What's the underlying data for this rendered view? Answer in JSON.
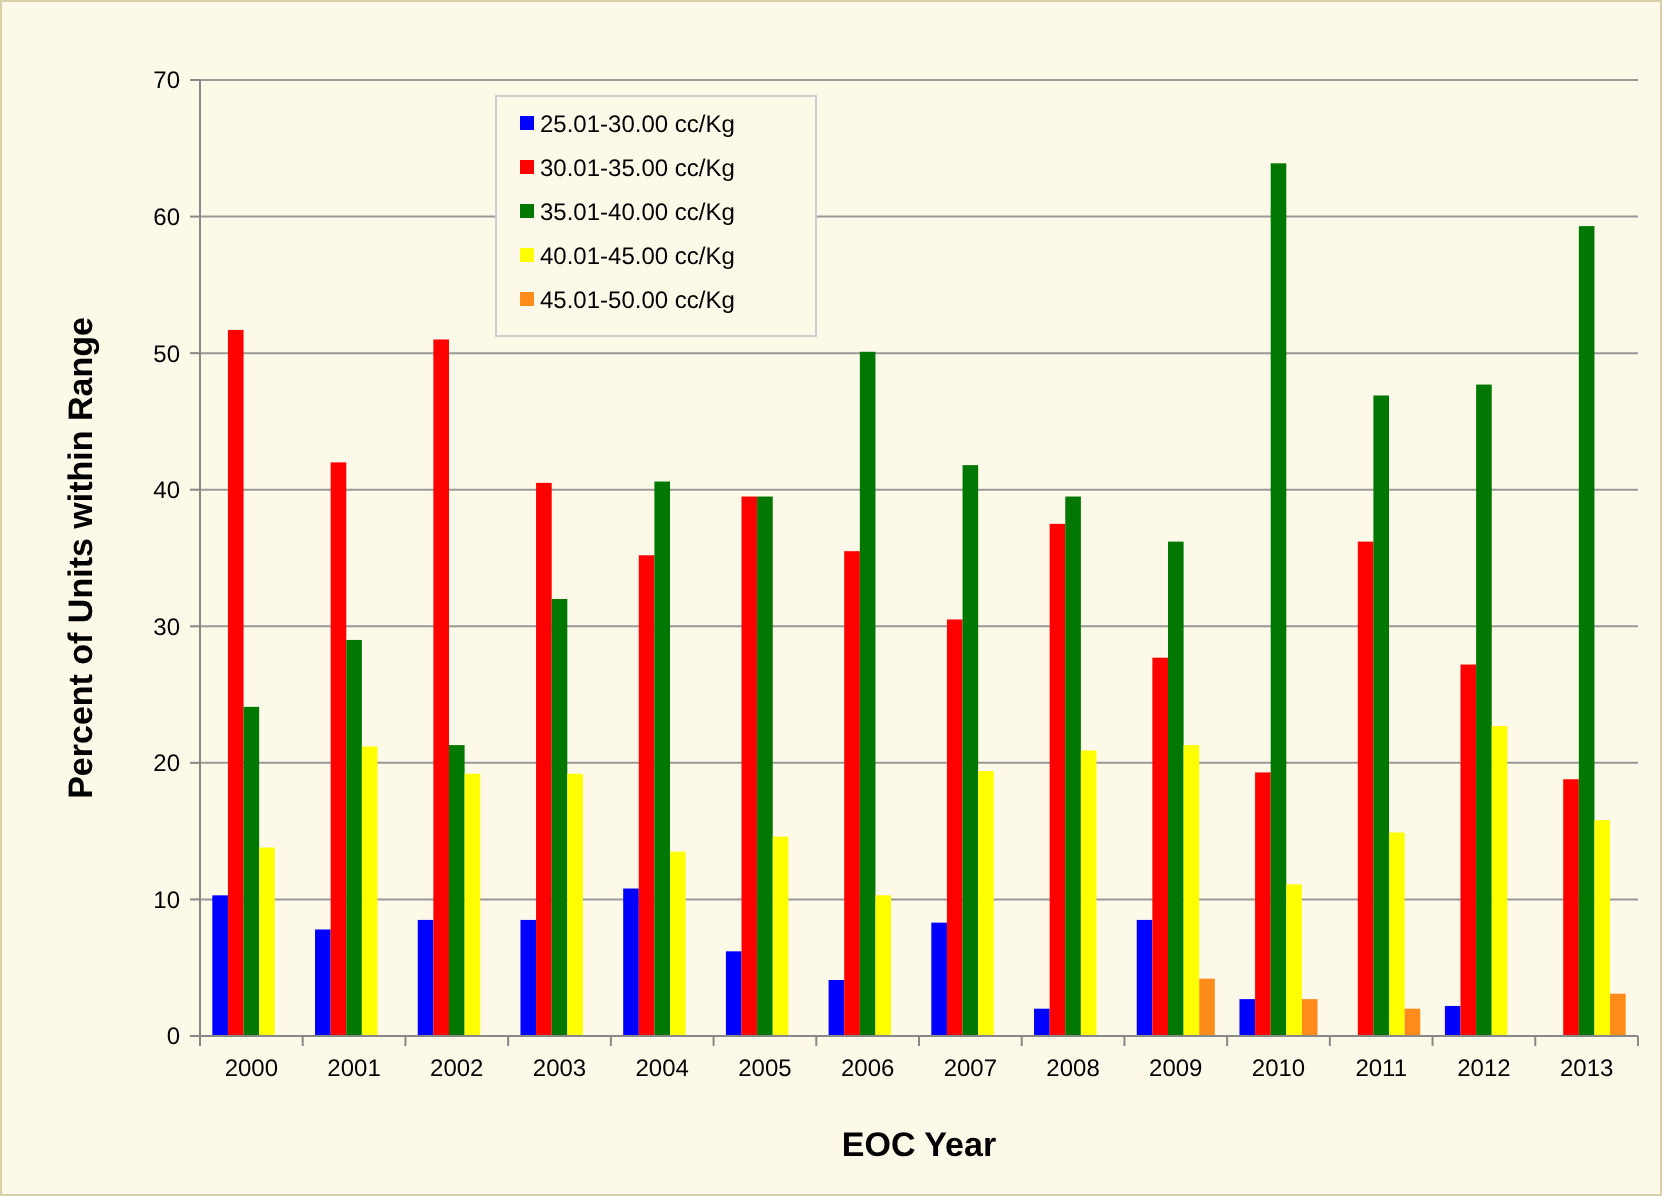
{
  "chart_data": {
    "type": "bar",
    "xlabel": "EOC Year",
    "ylabel": "Percent of Units within Range",
    "categories": [
      "2000",
      "2001",
      "2002",
      "2003",
      "2004",
      "2005",
      "2006",
      "2007",
      "2008",
      "2009",
      "2010",
      "2011",
      "2012",
      "2013"
    ],
    "series": [
      {
        "name": "25.01-30.00  cc/Kg",
        "color": "#0000ff",
        "values": [
          10.3,
          7.8,
          8.5,
          8.5,
          10.8,
          6.2,
          4.1,
          8.3,
          2.0,
          8.5,
          2.7,
          null,
          2.2,
          null
        ]
      },
      {
        "name": "30.01-35.00  cc/Kg",
        "color": "#ff0000",
        "values": [
          51.7,
          42.0,
          51.0,
          40.5,
          35.2,
          39.5,
          35.5,
          30.5,
          37.5,
          27.7,
          19.3,
          36.2,
          27.2,
          18.8
        ]
      },
      {
        "name": "35.01-40.00  cc/Kg",
        "color": "#007800",
        "values": [
          24.1,
          29.0,
          21.3,
          32.0,
          40.6,
          39.5,
          50.1,
          41.8,
          39.5,
          36.2,
          63.9,
          46.9,
          47.7,
          59.3
        ]
      },
      {
        "name": "40.01-45.00  cc/Kg",
        "color": "#ffff00",
        "values": [
          13.8,
          21.2,
          19.2,
          19.2,
          13.5,
          14.6,
          10.3,
          19.4,
          20.9,
          21.3,
          11.1,
          14.9,
          22.7,
          15.8
        ]
      },
      {
        "name": "45.01-50.00  cc/Kg",
        "color": "#ff8c1a",
        "values": [
          null,
          null,
          null,
          null,
          null,
          null,
          null,
          null,
          null,
          4.2,
          2.7,
          2.0,
          null,
          3.1
        ]
      }
    ],
    "ylim": [
      0,
      70
    ],
    "yticks": [
      0,
      10,
      20,
      30,
      40,
      50,
      60,
      70
    ],
    "grid": "y",
    "legend": "top"
  }
}
